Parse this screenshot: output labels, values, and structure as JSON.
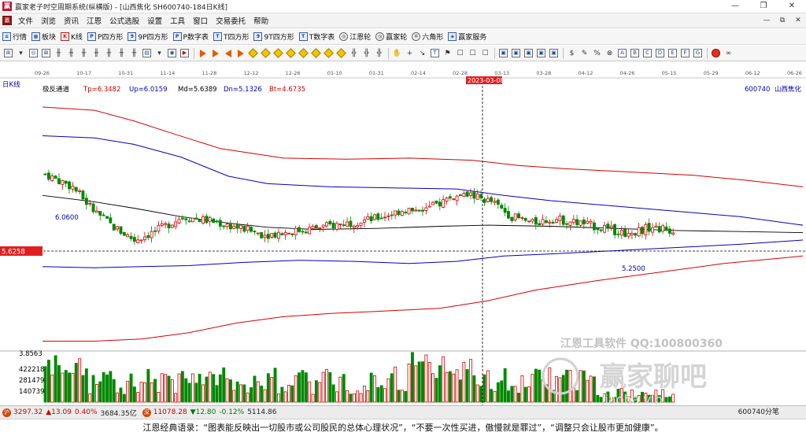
{
  "window": {
    "title": "赢家老子时空周期系统(纵横版) - [山西焦化  SH600740-184日K线]",
    "min": "—",
    "max": "❐",
    "close": "✕",
    "logo": "赢"
  },
  "menu": {
    "logo": "赢",
    "items": [
      "文件",
      "浏览",
      "资讯",
      "江恩",
      "公式选股",
      "设置",
      "工具",
      "窗口",
      "交易委托",
      "帮助"
    ],
    "right": [
      "—",
      "⧉",
      "✕"
    ]
  },
  "toolbar": {
    "items": [
      {
        "label": "行情",
        "icon": "quote-list-icon",
        "glyph": "≡"
      },
      {
        "label": "板块",
        "icon": "sector-icon",
        "glyph": "▦"
      },
      {
        "label": "K线",
        "icon": "kline-icon",
        "glyph": "K"
      },
      {
        "label": "P四方形",
        "icon": "p-square-icon",
        "glyph": "P"
      },
      {
        "label": "9P四方形",
        "icon": "9p-square-icon",
        "glyph": "9"
      },
      {
        "label": "P数字表",
        "icon": "p-table-icon",
        "glyph": "P"
      },
      {
        "label": "T四方形",
        "icon": "t-square-icon",
        "glyph": "T"
      },
      {
        "label": "9T四方形",
        "icon": "9t-square-icon",
        "glyph": "9"
      },
      {
        "label": "T数字表",
        "icon": "t-table-icon",
        "glyph": "T"
      },
      {
        "label": "江恩轮",
        "icon": "gann-wheel-icon",
        "glyph": "◎"
      },
      {
        "label": "赢家轮",
        "icon": "winner-wheel-icon",
        "glyph": "◎"
      },
      {
        "label": "六角形",
        "icon": "hexagon-icon",
        "glyph": "✡"
      },
      {
        "label": "赢家服务",
        "icon": "service-icon",
        "glyph": "◈"
      }
    ]
  },
  "chart": {
    "period_label": "日K线",
    "indicator_name": "极反通道",
    "indicators": [
      {
        "text": "Tp=6.3482",
        "color": "#c00000"
      },
      {
        "text": "Up=6.0159",
        "color": "#0000c0"
      },
      {
        "text": "Md=5.6389",
        "color": "#000000"
      },
      {
        "text": "Dn=5.1326",
        "color": "#0000c0"
      },
      {
        "text": "Bt=4.6735",
        "color": "#c00000"
      }
    ],
    "code_label": "600740",
    "name_label": "山西焦化",
    "date_ticks": [
      "09-26",
      "10-17",
      "10-31",
      "11-14",
      "11-28",
      "12-12",
      "12-26",
      "01-10",
      "01-31",
      "02-14",
      "02-28",
      "03-13",
      "03-28",
      "04-12",
      "04-26",
      "05-15",
      "05-29",
      "06-12",
      "06-26"
    ],
    "cursor_date": "2023-03-08",
    "price_cursor": "5.6258",
    "high_label": "6.0600",
    "low_label": "5.2500",
    "vol_max_label": "3.8563",
    "vol_ticks": [
      "422218",
      "281479",
      "140739"
    ],
    "watermark_1": "江恩工具软件  QQ:100800360",
    "watermark_2": "赢家聊吧",
    "watermark_3": "jiaoba.vip"
  },
  "chart_data": {
    "type": "candlestick",
    "title": "山西焦化 600740 日K线",
    "indicator": "极反通道",
    "values": {
      "Tp": 6.3482,
      "Up": 6.0159,
      "Md": 5.6389,
      "Dn": 5.1326,
      "Bt": 4.6735
    },
    "highlighted_price": 5.6258,
    "annotated_high": 6.06,
    "annotated_low": 5.25,
    "volume_ticks": [
      422218,
      281479,
      140739
    ]
  },
  "status": {
    "icon1": "沪",
    "sh_index": "3297.32",
    "sh_change": "▲13.09",
    "sh_pct": "0.40%",
    "sh_amount": "3684.35亿",
    "icon2": "深",
    "sz_index": "11078.28",
    "sz_change": "▼12.80",
    "sz_pct": "-0.12%",
    "sz_amount": "5114.86",
    "right_text": "600740分笔"
  },
  "marquee": "江恩经典语录：“图表能反映出一切股市或公司股民的总体心理状况”，“不要一次性买进，傲慢就是罪过”，“调整只会让股市更加健康”。",
  "colors": {
    "up": "#d80000",
    "down": "#008800",
    "tp_bt": "#d80000",
    "up_dn": "#0000c0",
    "md": "#000000",
    "vol_up": "#d80000",
    "vol_down": "#008800"
  }
}
